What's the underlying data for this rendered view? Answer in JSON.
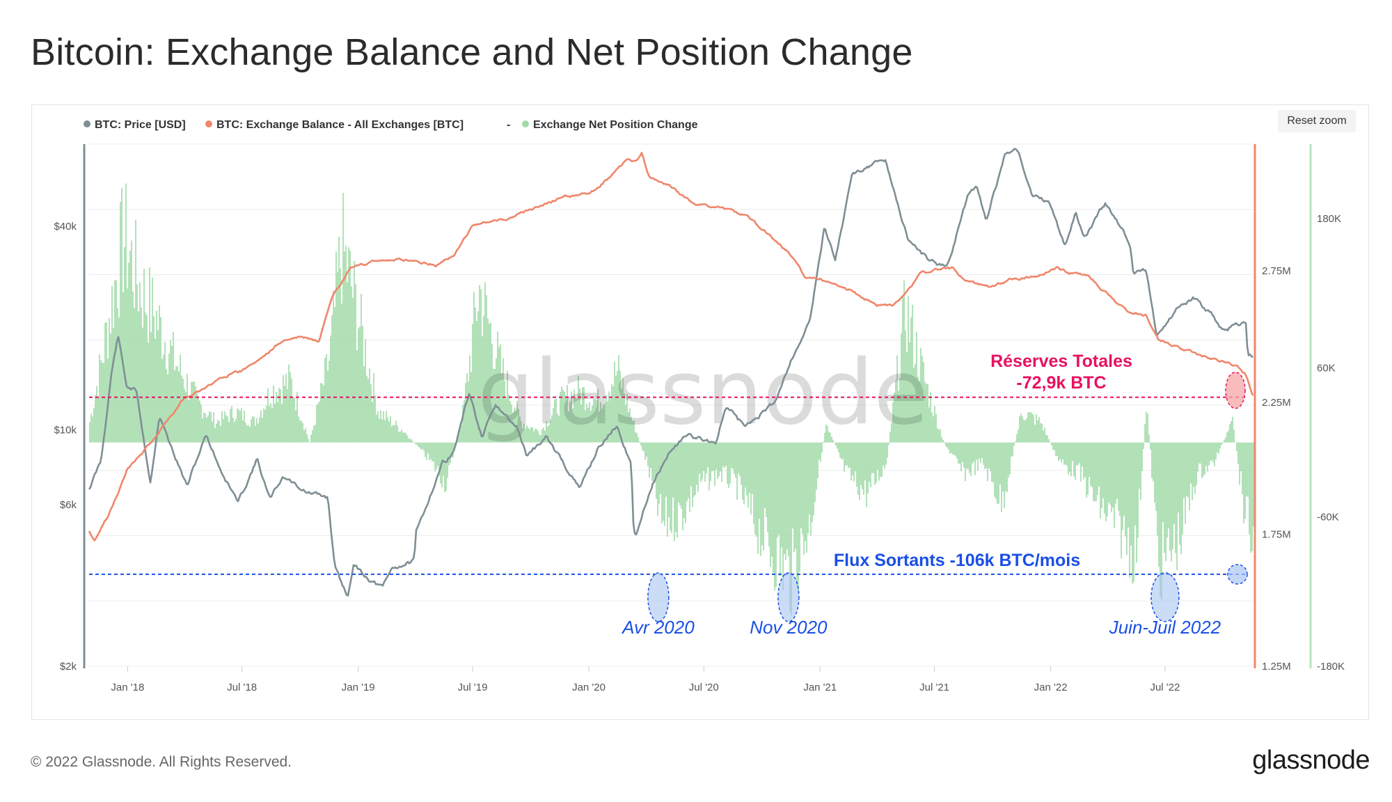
{
  "page": {
    "title": "Bitcoin: Exchange Balance and Net Position Change",
    "footer": "© 2022 Glassnode. All Rights Reserved.",
    "logo": "glassnode",
    "reset_zoom": "Reset zoom",
    "watermark": "glassnode"
  },
  "colors": {
    "price": "#7f8e94",
    "balance": "#f0866a",
    "netflow": "#9fdaa6",
    "annotation_red": "#e8115f",
    "annotation_blue": "#1a4fe6"
  },
  "chart_data": {
    "type": "line",
    "title": "Bitcoin: Exchange Balance and Net Position Change",
    "legend": {
      "placement": "top-left",
      "items": [
        {
          "label": "BTC: Price [USD]",
          "color": "#7f8e94"
        },
        {
          "label": "BTC: Exchange Balance - All Exchanges [BTC]",
          "color": "#f0866a"
        },
        {
          "label": "-",
          "color": "#777777"
        },
        {
          "label": "Exchange Net Position Change",
          "color": "#9fdaa6"
        }
      ]
    },
    "x_ticks": [
      "Jan '18",
      "Jul '18",
      "Jan '19",
      "Jul '19",
      "Jan '20",
      "Jul '20",
      "Jan '21",
      "Jul '21",
      "Jan '22",
      "Jul '22"
    ],
    "x_range": [
      "2017-11-01",
      "2022-11-18"
    ],
    "y_axes": {
      "price": {
        "scale": "log",
        "ticks": [
          "$2k",
          "$6k",
          "$10k",
          "$40k"
        ],
        "tick_values": [
          2000,
          6000,
          10000,
          40000
        ],
        "range": [
          2000,
          70000
        ]
      },
      "balance": {
        "ticks": [
          "1.25M",
          "1.75M",
          "2.25M",
          "2.75M"
        ],
        "tick_values": [
          1250000,
          1750000,
          2250000,
          2750000
        ],
        "range": [
          1250000,
          3230000
        ]
      },
      "netflow": {
        "ticks": [
          "-180K",
          "-60K",
          "60K",
          "180K"
        ],
        "tick_values": [
          -180000,
          -60000,
          60000,
          180000
        ],
        "range": [
          -180000,
          240000
        ]
      }
    },
    "grid": true,
    "series": [
      {
        "name": "BTC: Price [USD]",
        "axis": "price",
        "points": [
          [
            "2017-11-01",
            6700
          ],
          [
            "2017-11-20",
            8100
          ],
          [
            "2017-12-07",
            15000
          ],
          [
            "2017-12-17",
            19000
          ],
          [
            "2017-12-30",
            13500
          ],
          [
            "2018-01-15",
            13000
          ],
          [
            "2018-02-06",
            7000
          ],
          [
            "2018-02-20",
            11000
          ],
          [
            "2018-03-10",
            9000
          ],
          [
            "2018-04-05",
            6800
          ],
          [
            "2018-05-05",
            9700
          ],
          [
            "2018-05-30",
            7500
          ],
          [
            "2018-06-25",
            6100
          ],
          [
            "2018-07-25",
            8200
          ],
          [
            "2018-08-14",
            6200
          ],
          [
            "2018-09-04",
            7300
          ],
          [
            "2018-10-15",
            6500
          ],
          [
            "2018-11-14",
            6300
          ],
          [
            "2018-11-25",
            3900
          ],
          [
            "2018-12-15",
            3200
          ],
          [
            "2018-12-24",
            4000
          ],
          [
            "2019-01-20",
            3600
          ],
          [
            "2019-02-08",
            3400
          ],
          [
            "2019-02-24",
            3900
          ],
          [
            "2019-03-31",
            4100
          ],
          [
            "2019-04-02",
            4900
          ],
          [
            "2019-05-14",
            8000
          ],
          [
            "2019-05-31",
            8500
          ],
          [
            "2019-06-26",
            12900
          ],
          [
            "2019-07-16",
            9400
          ],
          [
            "2019-08-06",
            11800
          ],
          [
            "2019-09-10",
            10100
          ],
          [
            "2019-09-25",
            8400
          ],
          [
            "2019-10-25",
            9500
          ],
          [
            "2019-11-20",
            8100
          ],
          [
            "2019-12-17",
            6700
          ],
          [
            "2020-01-15",
            8800
          ],
          [
            "2020-02-14",
            10300
          ],
          [
            "2020-03-08",
            8000
          ],
          [
            "2020-03-12",
            5000
          ],
          [
            "2020-03-16",
            5000
          ],
          [
            "2020-04-10",
            6900
          ],
          [
            "2020-05-10",
            8700
          ],
          [
            "2020-06-01",
            9600
          ],
          [
            "2020-07-20",
            9200
          ],
          [
            "2020-08-05",
            11700
          ],
          [
            "2020-09-05",
            10200
          ],
          [
            "2020-10-20",
            12000
          ],
          [
            "2020-11-15",
            16000
          ],
          [
            "2020-12-16",
            21000
          ],
          [
            "2021-01-08",
            40000
          ],
          [
            "2021-01-25",
            32000
          ],
          [
            "2021-02-21",
            57000
          ],
          [
            "2021-03-13",
            60000
          ],
          [
            "2021-04-14",
            63000
          ],
          [
            "2021-05-19",
            37000
          ],
          [
            "2021-06-22",
            32000
          ],
          [
            "2021-07-20",
            30000
          ],
          [
            "2021-08-23",
            49000
          ],
          [
            "2021-09-07",
            52000
          ],
          [
            "2021-09-21",
            41000
          ],
          [
            "2021-10-20",
            65000
          ],
          [
            "2021-11-10",
            67000
          ],
          [
            "2021-12-04",
            49000
          ],
          [
            "2021-12-31",
            47000
          ],
          [
            "2022-01-24",
            35000
          ],
          [
            "2022-02-10",
            44000
          ],
          [
            "2022-02-24",
            37000
          ],
          [
            "2022-03-29",
            47000
          ],
          [
            "2022-05-06",
            36000
          ],
          [
            "2022-05-12",
            29000
          ],
          [
            "2022-06-01",
            30000
          ],
          [
            "2022-06-18",
            19000
          ],
          [
            "2022-07-20",
            23000
          ],
          [
            "2022-08-14",
            24500
          ],
          [
            "2022-09-12",
            22000
          ],
          [
            "2022-09-30",
            19500
          ],
          [
            "2022-10-25",
            20500
          ],
          [
            "2022-11-06",
            21000
          ],
          [
            "2022-11-09",
            16500
          ],
          [
            "2022-11-18",
            16600
          ]
        ]
      },
      {
        "name": "BTC: Exchange Balance - All Exchanges [BTC]",
        "axis": "balance",
        "points": [
          [
            "2017-11-01",
            1760000
          ],
          [
            "2017-11-10",
            1730000
          ],
          [
            "2017-12-01",
            1820000
          ],
          [
            "2018-01-01",
            2000000
          ],
          [
            "2018-02-01",
            2080000
          ],
          [
            "2018-03-01",
            2170000
          ],
          [
            "2018-04-01",
            2270000
          ],
          [
            "2018-05-01",
            2300000
          ],
          [
            "2018-06-01",
            2350000
          ],
          [
            "2018-07-01",
            2370000
          ],
          [
            "2018-08-01",
            2420000
          ],
          [
            "2018-09-01",
            2480000
          ],
          [
            "2018-10-01",
            2500000
          ],
          [
            "2018-10-31",
            2480000
          ],
          [
            "2018-11-20",
            2640000
          ],
          [
            "2018-12-20",
            2760000
          ],
          [
            "2019-02-01",
            2790000
          ],
          [
            "2019-04-01",
            2790000
          ],
          [
            "2019-05-05",
            2770000
          ],
          [
            "2019-06-01",
            2810000
          ],
          [
            "2019-07-01",
            2920000
          ],
          [
            "2019-08-01",
            2940000
          ],
          [
            "2019-09-01",
            2950000
          ],
          [
            "2019-10-01",
            2980000
          ],
          [
            "2019-11-20",
            3030000
          ],
          [
            "2020-01-01",
            3040000
          ],
          [
            "2020-02-01",
            3100000
          ],
          [
            "2020-03-01",
            3170000
          ],
          [
            "2020-03-15",
            3160000
          ],
          [
            "2020-03-25",
            3200000
          ],
          [
            "2020-04-05",
            3110000
          ],
          [
            "2020-05-15",
            3060000
          ],
          [
            "2020-06-15",
            3000000
          ],
          [
            "2020-08-01",
            2990000
          ],
          [
            "2020-09-10",
            2950000
          ],
          [
            "2020-10-15",
            2880000
          ],
          [
            "2020-11-15",
            2810000
          ],
          [
            "2020-12-10",
            2720000
          ],
          [
            "2021-01-01",
            2720000
          ],
          [
            "2021-02-01",
            2690000
          ],
          [
            "2021-03-01",
            2660000
          ],
          [
            "2021-04-01",
            2620000
          ],
          [
            "2021-04-25",
            2620000
          ],
          [
            "2021-05-15",
            2660000
          ],
          [
            "2021-06-10",
            2740000
          ],
          [
            "2021-07-15",
            2760000
          ],
          [
            "2021-08-01",
            2760000
          ],
          [
            "2021-08-20",
            2710000
          ],
          [
            "2021-09-30",
            2690000
          ],
          [
            "2021-11-01",
            2720000
          ],
          [
            "2021-12-10",
            2730000
          ],
          [
            "2022-01-10",
            2760000
          ],
          [
            "2022-02-01",
            2740000
          ],
          [
            "2022-03-01",
            2730000
          ],
          [
            "2022-04-01",
            2660000
          ],
          [
            "2022-05-01",
            2600000
          ],
          [
            "2022-06-01",
            2580000
          ],
          [
            "2022-06-20",
            2490000
          ],
          [
            "2022-07-20",
            2460000
          ],
          [
            "2022-08-15",
            2440000
          ],
          [
            "2022-09-20",
            2410000
          ],
          [
            "2022-10-20",
            2390000
          ],
          [
            "2022-11-05",
            2360000
          ],
          [
            "2022-11-18",
            2270000
          ]
        ]
      },
      {
        "name": "Exchange Net Position Change",
        "axis": "netflow",
        "style": "area",
        "points": [
          [
            "2017-11-01",
            20000
          ],
          [
            "2017-11-20",
            80000
          ],
          [
            "2017-12-10",
            150000
          ],
          [
            "2017-12-25",
            200000
          ],
          [
            "2018-01-20",
            150000
          ],
          [
            "2018-02-15",
            120000
          ],
          [
            "2018-03-15",
            80000
          ],
          [
            "2018-04-20",
            40000
          ],
          [
            "2018-05-20",
            20000
          ],
          [
            "2018-06-20",
            30000
          ],
          [
            "2018-07-20",
            20000
          ],
          [
            "2018-08-15",
            50000
          ],
          [
            "2018-09-15",
            60000
          ],
          [
            "2018-10-15",
            0
          ],
          [
            "2018-11-15",
            80000
          ],
          [
            "2018-12-05",
            190000
          ],
          [
            "2018-12-25",
            140000
          ],
          [
            "2019-02-01",
            30000
          ],
          [
            "2019-03-15",
            10000
          ],
          [
            "2019-04-20",
            -15000
          ],
          [
            "2019-05-20",
            -40000
          ],
          [
            "2019-06-15",
            30000
          ],
          [
            "2019-07-10",
            150000
          ],
          [
            "2019-08-15",
            70000
          ],
          [
            "2019-09-15",
            20000
          ],
          [
            "2019-10-15",
            10000
          ],
          [
            "2019-11-15",
            40000
          ],
          [
            "2019-12-15",
            50000
          ],
          [
            "2020-01-15",
            40000
          ],
          [
            "2020-02-15",
            70000
          ],
          [
            "2020-03-10",
            20000
          ],
          [
            "2020-04-01",
            -20000
          ],
          [
            "2020-04-25",
            -80000
          ],
          [
            "2020-05-25",
            -70000
          ],
          [
            "2020-06-25",
            -40000
          ],
          [
            "2020-07-25",
            -30000
          ],
          [
            "2020-08-20",
            -40000
          ],
          [
            "2020-09-20",
            -80000
          ],
          [
            "2020-10-20",
            -110000
          ],
          [
            "2020-11-15",
            -130000
          ],
          [
            "2020-12-15",
            -80000
          ],
          [
            "2021-01-10",
            20000
          ],
          [
            "2021-02-10",
            -30000
          ],
          [
            "2021-03-15",
            -50000
          ],
          [
            "2021-04-15",
            -20000
          ],
          [
            "2021-05-15",
            130000
          ],
          [
            "2021-06-15",
            60000
          ],
          [
            "2021-07-15",
            0
          ],
          [
            "2021-08-15",
            -30000
          ],
          [
            "2021-09-15",
            -20000
          ],
          [
            "2021-10-15",
            -60000
          ],
          [
            "2021-11-15",
            30000
          ],
          [
            "2021-12-15",
            20000
          ],
          [
            "2022-01-15",
            -20000
          ],
          [
            "2022-02-15",
            -30000
          ],
          [
            "2022-03-15",
            -60000
          ],
          [
            "2022-04-15",
            -80000
          ],
          [
            "2022-05-15",
            -110000
          ],
          [
            "2022-06-01",
            40000
          ],
          [
            "2022-06-20",
            -120000
          ],
          [
            "2022-07-05",
            -110000
          ],
          [
            "2022-07-25",
            -90000
          ],
          [
            "2022-08-20",
            -30000
          ],
          [
            "2022-09-15",
            -20000
          ],
          [
            "2022-10-15",
            20000
          ],
          [
            "2022-11-01",
            -60000
          ],
          [
            "2022-11-18",
            -106000
          ]
        ]
      }
    ],
    "annotations": {
      "reserves_line": {
        "label_line1": "Réserves Totales",
        "label_line2": "-72,9k BTC",
        "value": 2270000,
        "axis": "balance",
        "color": "#e8115f"
      },
      "outflows_line": {
        "label": "Flux Sortants -106k BTC/mois",
        "value": -106000,
        "axis": "netflow",
        "color": "#1a4fe6"
      },
      "marked_periods": [
        {
          "label": "Avr 2020",
          "date": "2020-04-20"
        },
        {
          "label": "Nov 2020",
          "date": "2020-11-12"
        },
        {
          "label": "Juin-Juil 2022",
          "date": "2022-07-01"
        }
      ]
    }
  }
}
